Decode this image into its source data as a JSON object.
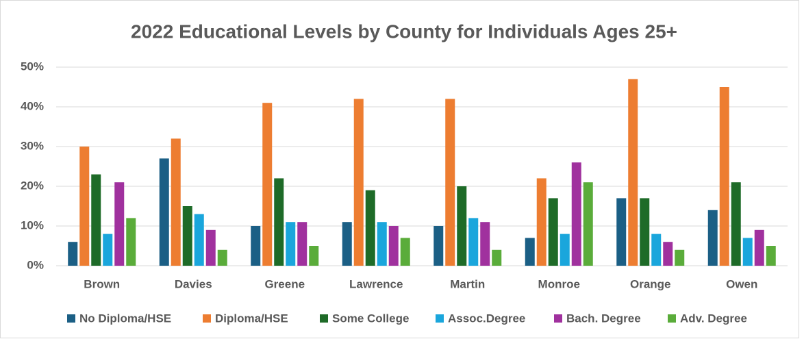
{
  "chart_data": {
    "type": "bar",
    "title": "2022 Educational Levels by County for Individuals Ages 25+",
    "categories": [
      "Brown",
      "Davies",
      "Greene",
      "Lawrence",
      "Martin",
      "Monroe",
      "Orange",
      "Owen"
    ],
    "series": [
      {
        "name": "No Diploma/HSE",
        "color": "#1b5f85",
        "values": [
          6,
          27,
          10,
          11,
          10,
          7,
          17,
          14
        ]
      },
      {
        "name": "Diploma/HSE",
        "color": "#ed7d31",
        "values": [
          30,
          32,
          41,
          42,
          42,
          22,
          47,
          45
        ]
      },
      {
        "name": "Some College",
        "color": "#1e6b28",
        "values": [
          23,
          15,
          22,
          19,
          20,
          17,
          17,
          21
        ]
      },
      {
        "name": "Assoc.Degree",
        "color": "#1aa6dc",
        "values": [
          8,
          13,
          11,
          11,
          12,
          8,
          8,
          7
        ]
      },
      {
        "name": "Bach. Degree",
        "color": "#a0319e",
        "values": [
          21,
          9,
          11,
          10,
          11,
          26,
          6,
          9
        ]
      },
      {
        "name": "Adv. Degree",
        "color": "#5aac3a",
        "values": [
          12,
          4,
          5,
          7,
          4,
          21,
          4,
          5
        ]
      }
    ],
    "ylim": [
      0,
      50
    ],
    "yticks": [
      {
        "value": 0,
        "label": "0%"
      },
      {
        "value": 10,
        "label": "10%"
      },
      {
        "value": 20,
        "label": "20%"
      },
      {
        "value": 30,
        "label": "30%"
      },
      {
        "value": 40,
        "label": "40%"
      },
      {
        "value": 50,
        "label": "50%"
      }
    ],
    "grid": true,
    "legend": "bottom"
  }
}
